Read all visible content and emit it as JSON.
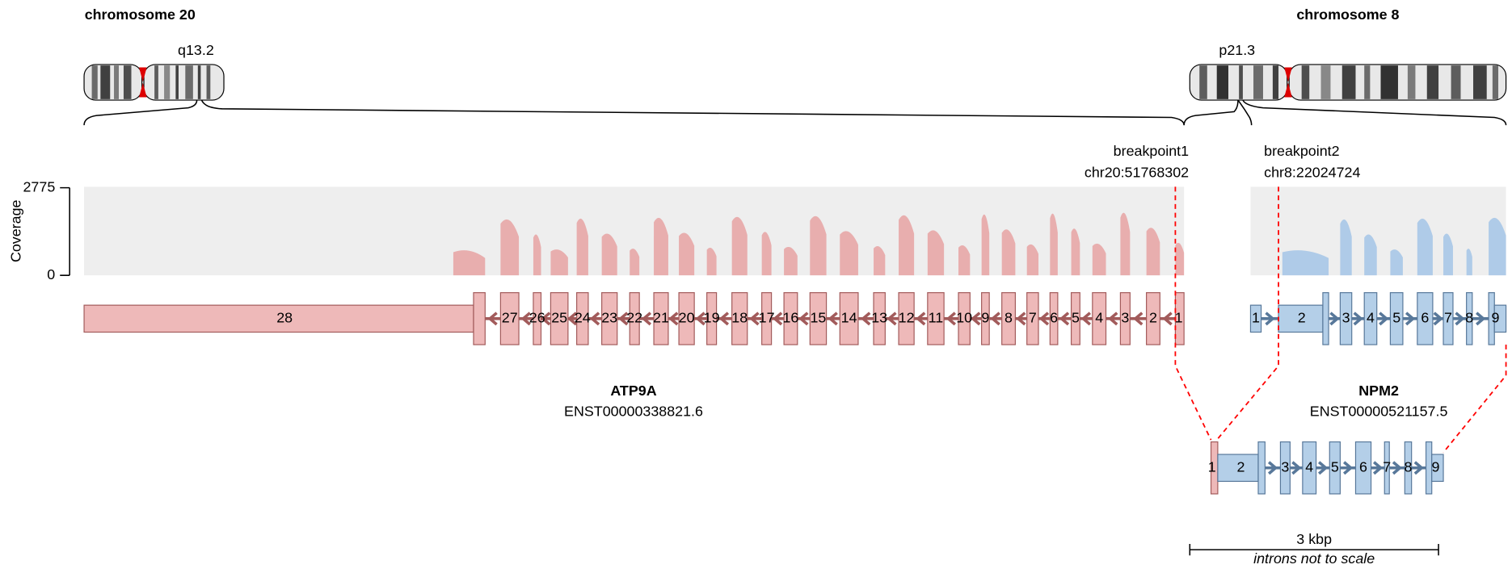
{
  "chromosomes": [
    {
      "label": "chromosome 20",
      "band": "q13.2"
    },
    {
      "label": "chromosome 8",
      "band": "p21.3"
    }
  ],
  "coverage_axis": {
    "label": "Coverage",
    "ticks": [
      2775,
      0
    ]
  },
  "breakpoints": [
    {
      "label": "breakpoint1",
      "position": "chr20:51768302"
    },
    {
      "label": "breakpoint2",
      "position": "chr8:22024724"
    }
  ],
  "genes": [
    {
      "name": "ATP9A",
      "transcript": "ENST00000338821.6",
      "exons": [
        28,
        27,
        26,
        25,
        24,
        23,
        22,
        21,
        20,
        19,
        18,
        17,
        16,
        15,
        14,
        13,
        12,
        11,
        10,
        9,
        8,
        7,
        6,
        5,
        4,
        3,
        2,
        1
      ]
    },
    {
      "name": "NPM2",
      "transcript": "ENST00000521157.5",
      "exons": [
        1,
        2,
        3,
        4,
        5,
        6,
        7,
        8,
        9
      ]
    }
  ],
  "fusion": {
    "exons": [
      1,
      2,
      3,
      4,
      5,
      6,
      7,
      8,
      9
    ]
  },
  "scale": {
    "label": "3 kbp",
    "note": "introns not to scale"
  }
}
